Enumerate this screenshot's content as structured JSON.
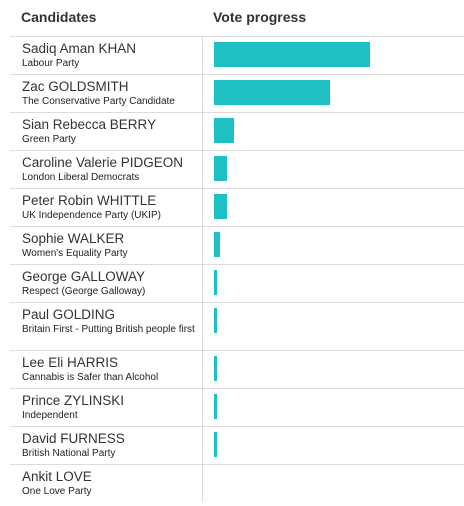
{
  "header": {
    "candidates_label": "Candidates",
    "progress_label": "Vote progress"
  },
  "colors": {
    "bar": "#1fbfc6"
  },
  "chart_data": {
    "type": "bar",
    "orientation": "horizontal",
    "title": "",
    "xlabel": "Vote progress",
    "ylabel": "Candidates",
    "value_unit": "fraction of leading candidate",
    "xlim": [
      0,
      1
    ],
    "grid": false,
    "legend": "none",
    "categories": [
      "Sadiq Aman KHAN",
      "Zac GOLDSMITH",
      "Sian Rebecca BERRY",
      "Caroline Valerie PIDGEON",
      "Peter Robin WHITTLE",
      "Sophie WALKER",
      "George GALLOWAY",
      "Paul GOLDING",
      "Lee Eli HARRIS",
      "Prince ZYLINSKI",
      "David FURNESS",
      "Ankit LOVE"
    ],
    "parties": [
      "Labour Party",
      "The Conservative Party Candidate",
      "Green Party",
      "London Liberal Democrats",
      "UK Independence Party (UKIP)",
      "Women's Equality Party",
      "Respect (George Galloway)",
      "Britain First - Putting British people first",
      "Cannabis is Safer than Alcohol",
      "Independent",
      "British National Party",
      "One Love Party"
    ],
    "values": [
      1.0,
      0.745,
      0.128,
      0.083,
      0.083,
      0.038,
      0.019,
      0.019,
      0.019,
      0.019,
      0.019,
      0.0
    ]
  }
}
